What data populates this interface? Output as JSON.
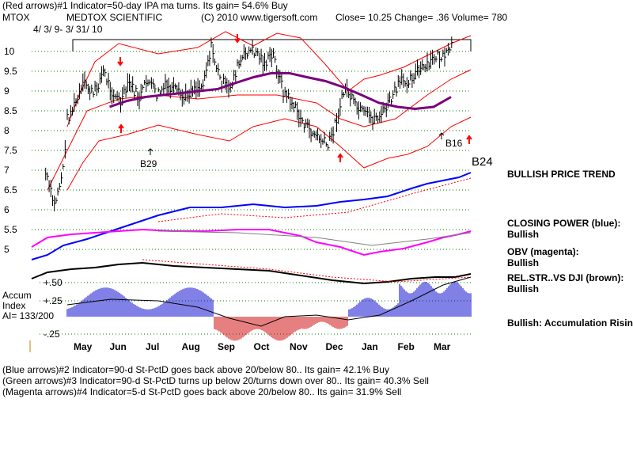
{
  "header": {
    "line1": "(Red arrows)#1 Indicator=50-day IPA ma turns. Its gain= 54.6% Buy",
    "symbol": "MTOX",
    "company": "MEDTOX SCIENTIFIC",
    "copyright": "(C) 2010 www.tigersoft.com",
    "quote": "Close=  10.25   Change= .36 Volume= 780",
    "date_range": "4/ 3/ 9- 3/ 31/ 10"
  },
  "footer": {
    "line1": "(Blue arrows)#2 Indicator=90-d St-PctD goes back above 20/below 80.. Its gain= 42.1% Buy",
    "line2": "(Green arrows)#3 Indicator=90-d St-PctD turns up below 20/turns down over 80.. Its gain= 40.3% Sell",
    "line3": "(Magenta arrows)#4 Indicator=5-d St-PctD goes back above 20/below 80.. Its gain= 31.9% Sell"
  },
  "right_notes": {
    "trend": "BULLISH PRICE TREND",
    "cp_title": "CLOSING POWER (blue):",
    "cp_value": "Bullish",
    "obv_title": "OBV (magenta):",
    "obv_value": "Bullish",
    "rs_title": "REL.STR..VS DJI (brown):",
    "rs_value": "Bullish",
    "accum_note": "Bullish: Accumulation Rising"
  },
  "accum_panel": {
    "title_line1": "Accum",
    "title_line2": "Index",
    "ai_value": "AI= 133/200"
  },
  "annotations": [
    "B29",
    "B16",
    "B24"
  ],
  "colors": {
    "price": "#000000",
    "ma": "#7b007b",
    "bands": "#ff0000",
    "closing_power": "#0000ff",
    "obv": "#ff00ff",
    "relative_strength": "#000000",
    "accum_positive": "#0000cc",
    "accum_negative": "#cc0000",
    "grid": "#008000"
  },
  "chart_data": {
    "type": "line",
    "x": [
      "May",
      "Jun",
      "Jul",
      "Aug",
      "Sep",
      "Oct",
      "Nov",
      "Dec",
      "Jan",
      "Feb",
      "Mar"
    ],
    "price_ticks": [
      "10",
      "9.5",
      "9",
      "8.5",
      "8",
      "7.5",
      "7",
      "6.5",
      "6",
      "5.5",
      "5"
    ],
    "accum_ticks": [
      "+.50",
      "+.25",
      "-.25"
    ],
    "grid": true,
    "price": [
      {
        "d": "Apr",
        "v": 6.9
      },
      {
        "d": "Apr",
        "v": 6.1
      },
      {
        "d": "Apr",
        "v": 7.0
      },
      {
        "d": "May",
        "v": 8.3
      },
      {
        "d": "May",
        "v": 8.7
      },
      {
        "d": "May",
        "v": 9.2
      },
      {
        "d": "May",
        "v": 8.9
      },
      {
        "d": "Jun",
        "v": 9.5
      },
      {
        "d": "Jun",
        "v": 9.0
      },
      {
        "d": "Jun",
        "v": 8.7
      },
      {
        "d": "Jun",
        "v": 9.2
      },
      {
        "d": "Jul",
        "v": 8.8
      },
      {
        "d": "Jul",
        "v": 9.3
      },
      {
        "d": "Jul",
        "v": 8.9
      },
      {
        "d": "Jul",
        "v": 9.1
      },
      {
        "d": "Aug",
        "v": 9.0
      },
      {
        "d": "Aug",
        "v": 8.8
      },
      {
        "d": "Aug",
        "v": 9.1
      },
      {
        "d": "Aug",
        "v": 9.1
      },
      {
        "d": "Sep",
        "v": 10.1
      },
      {
        "d": "Sep",
        "v": 9.3
      },
      {
        "d": "Sep",
        "v": 9.0
      },
      {
        "d": "Sep",
        "v": 9.6
      },
      {
        "d": "Oct",
        "v": 10.0
      },
      {
        "d": "Oct",
        "v": 10.0
      },
      {
        "d": "Oct",
        "v": 9.7
      },
      {
        "d": "Oct",
        "v": 9.9
      },
      {
        "d": "Nov",
        "v": 9.0
      },
      {
        "d": "Nov",
        "v": 8.7
      },
      {
        "d": "Nov",
        "v": 8.3
      },
      {
        "d": "Nov",
        "v": 8.0
      },
      {
        "d": "Dec",
        "v": 7.8
      },
      {
        "d": "Dec",
        "v": 7.6
      },
      {
        "d": "Dec",
        "v": 8.3
      },
      {
        "d": "Dec",
        "v": 9.1
      },
      {
        "d": "Jan",
        "v": 8.6
      },
      {
        "d": "Jan",
        "v": 8.4
      },
      {
        "d": "Jan",
        "v": 8.3
      },
      {
        "d": "Jan",
        "v": 8.4
      },
      {
        "d": "Feb",
        "v": 8.8
      },
      {
        "d": "Feb",
        "v": 9.2
      },
      {
        "d": "Feb",
        "v": 9.3
      },
      {
        "d": "Feb",
        "v": 9.5
      },
      {
        "d": "Mar",
        "v": 9.6
      },
      {
        "d": "Mar",
        "v": 9.9
      },
      {
        "d": "Mar",
        "v": 9.8
      },
      {
        "d": "Mar",
        "v": 10.25
      }
    ],
    "ma50": [
      {
        "d": "Jun",
        "v": 8.6
      },
      {
        "d": "Jun",
        "v": 8.75
      },
      {
        "d": "Jul",
        "v": 8.85
      },
      {
        "d": "Jul",
        "v": 8.9
      },
      {
        "d": "Aug",
        "v": 8.95
      },
      {
        "d": "Aug",
        "v": 9.0
      },
      {
        "d": "Sep",
        "v": 9.05
      },
      {
        "d": "Sep",
        "v": 9.2
      },
      {
        "d": "Oct",
        "v": 9.35
      },
      {
        "d": "Oct",
        "v": 9.45
      },
      {
        "d": "Nov",
        "v": 9.45
      },
      {
        "d": "Nov",
        "v": 9.35
      },
      {
        "d": "Dec",
        "v": 9.25
      },
      {
        "d": "Dec",
        "v": 9.1
      },
      {
        "d": "Jan",
        "v": 8.9
      },
      {
        "d": "Jan",
        "v": 8.7
      },
      {
        "d": "Feb",
        "v": 8.6
      },
      {
        "d": "Feb",
        "v": 8.55
      },
      {
        "d": "Mar",
        "v": 8.6
      },
      {
        "d": "Mar",
        "v": 8.85
      }
    ]
  }
}
